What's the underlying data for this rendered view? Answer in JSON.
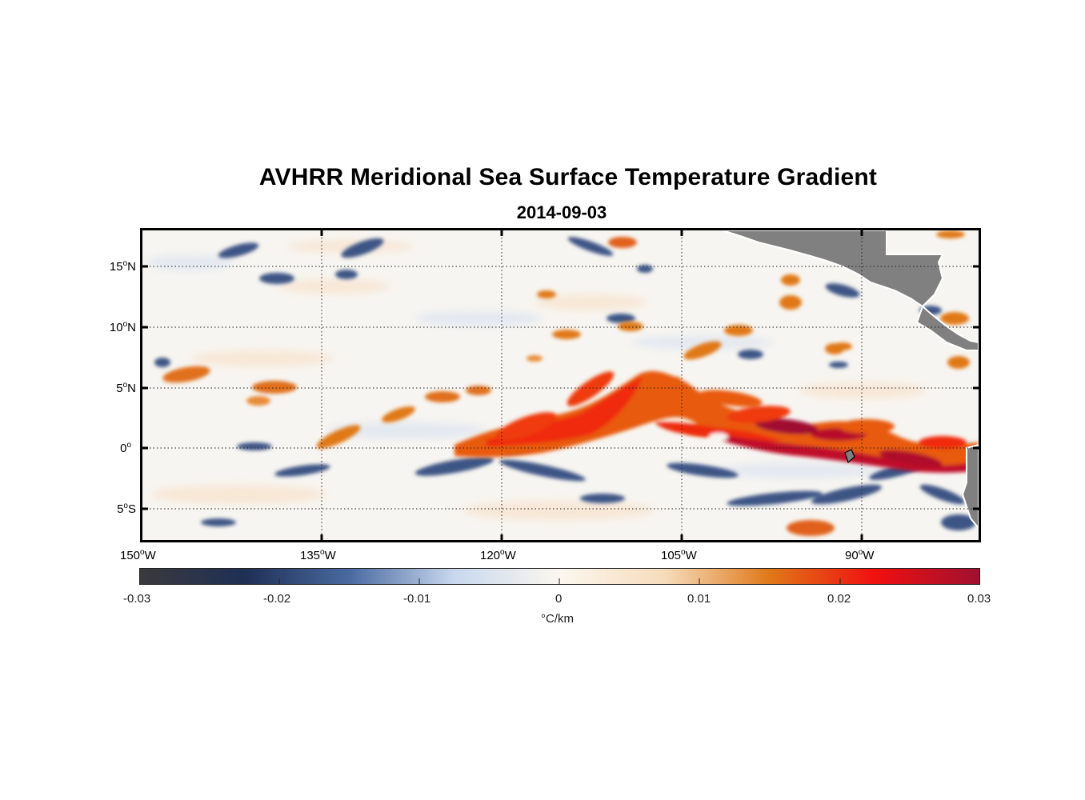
{
  "title": "AVHRR Meridional Sea Surface Temperature Gradient",
  "date": "2014-09-03",
  "map": {
    "lat_labels": [
      {
        "deg": "15",
        "hemi": "N"
      },
      {
        "deg": "10",
        "hemi": "N"
      },
      {
        "deg": "5",
        "hemi": "N"
      },
      {
        "deg": "0",
        "hemi": ""
      },
      {
        "deg": "5",
        "hemi": "S"
      }
    ],
    "lon_labels": [
      {
        "deg": "150",
        "hemi": "W"
      },
      {
        "deg": "135",
        "hemi": "W"
      },
      {
        "deg": "120",
        "hemi": "W"
      },
      {
        "deg": "105",
        "hemi": "W"
      },
      {
        "deg": "90",
        "hemi": "W"
      }
    ],
    "land_color": "#808080",
    "grid_style": "dotted"
  },
  "colorbar": {
    "ticks": [
      "-0.03",
      "-0.02",
      "-0.01",
      "0",
      "0.01",
      "0.02",
      "0.03"
    ],
    "unit": "°C/km",
    "colors": [
      "#3a3a3c",
      "#1f2f55",
      "#4a6aa0",
      "#c9d8ee",
      "#fbf7ef",
      "#f6dcbc",
      "#e07818",
      "#f01010",
      "#a01030"
    ]
  }
}
